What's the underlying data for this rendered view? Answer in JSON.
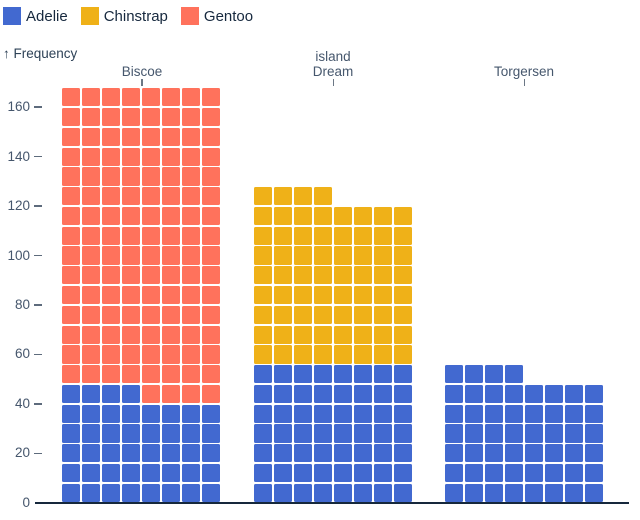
{
  "legend": {
    "note": "color legend for species"
  },
  "y_axis": {
    "label": "↑ Frequency"
  },
  "facet_axis": {
    "label": "island"
  },
  "chart_data": {
    "type": "bar",
    "subtype": "waffle-stacked-unit-chart",
    "title": "",
    "xlabel": "island",
    "ylabel": "Frequency",
    "facets": [
      "Biscoe",
      "Dream",
      "Torgersen"
    ],
    "columns_per_waffle": 8,
    "unit": 1,
    "ylim": [
      0,
      168
    ],
    "yticks": [
      0,
      20,
      40,
      60,
      80,
      100,
      120,
      140,
      160
    ],
    "grid": false,
    "legend_position": "top-left",
    "series": [
      {
        "name": "Adelie",
        "color": "#4269d0",
        "values": [
          44,
          56,
          52
        ]
      },
      {
        "name": "Chinstrap",
        "color": "#efb118",
        "values": [
          0,
          68,
          0
        ]
      },
      {
        "name": "Gentoo",
        "color": "#ff725c",
        "values": [
          124,
          0,
          0
        ]
      }
    ],
    "totals": [
      168,
      124,
      52
    ]
  }
}
